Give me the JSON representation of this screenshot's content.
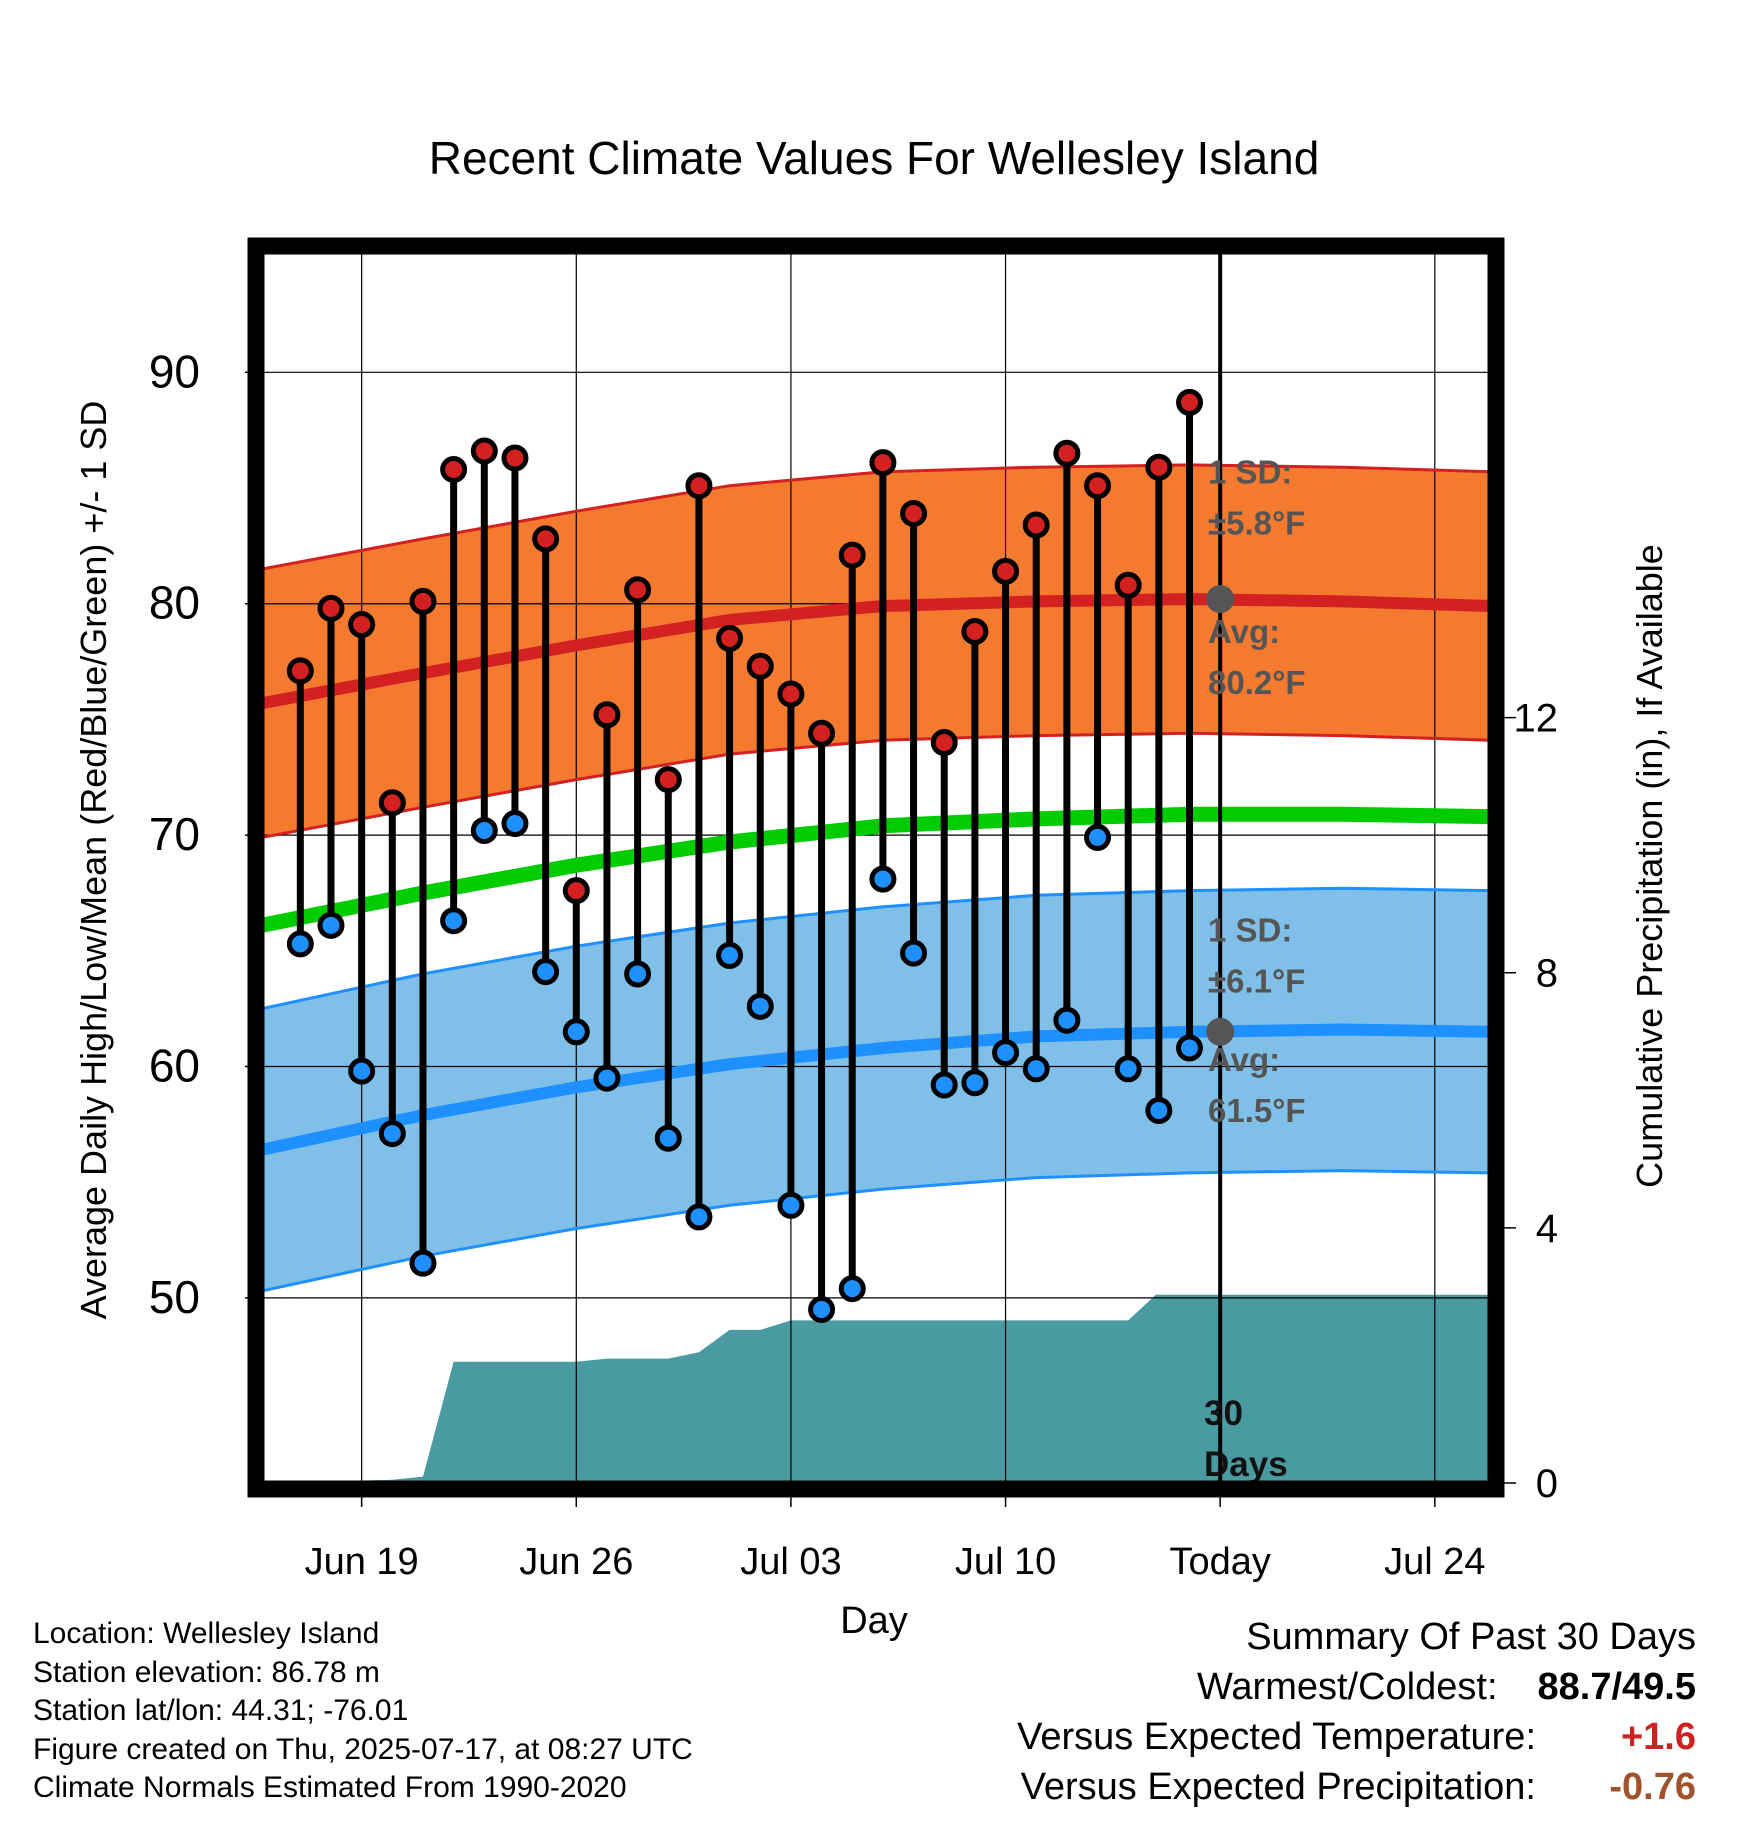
{
  "chart_data": {
    "type": "line",
    "title": "Recent Climate Values For Wellesley Island",
    "xlabel": "Day",
    "ylabel": "Average Daily High/Low/Mean (Red/Blue/Green) +/- 1 SD",
    "y2label": "Cumulative Precipitation (in), If Available",
    "x_ticks": [
      {
        "day": 3,
        "label": "Jun 19"
      },
      {
        "day": 10,
        "label": "Jun 26"
      },
      {
        "day": 17,
        "label": "Jul 03"
      },
      {
        "day": 24,
        "label": "Jul 10"
      },
      {
        "day": 31,
        "label": "Today"
      },
      {
        "day": 38,
        "label": "Jul 24"
      }
    ],
    "xlim": [
      -0.25,
      39.8
    ],
    "ylim": [
      42,
      95.2
    ],
    "y_ticks": [
      50,
      60,
      70,
      80,
      90
    ],
    "y_minor_ticks": [
      45,
      55,
      65,
      75,
      85
    ],
    "y2lim": [
      0,
      19.3
    ],
    "y2_ticks": [
      0,
      4,
      8,
      12
    ],
    "today_day": 31,
    "grid": true,
    "daily": {
      "day": [
        1,
        2,
        3,
        4,
        5,
        6,
        7,
        8,
        9,
        10,
        11,
        12,
        13,
        14,
        15,
        16,
        17,
        18,
        19,
        20,
        21,
        22,
        23,
        24,
        25,
        26,
        27,
        28,
        29,
        30
      ],
      "high": [
        77.1,
        79.8,
        79.1,
        71.4,
        80.1,
        85.8,
        86.6,
        86.3,
        82.8,
        67.6,
        75.2,
        80.6,
        72.4,
        85.1,
        78.5,
        77.3,
        76.1,
        74.4,
        82.1,
        86.1,
        83.9,
        74.0,
        78.8,
        81.4,
        83.4,
        86.5,
        85.1,
        80.8,
        85.9,
        88.7
      ],
      "low": [
        65.3,
        66.1,
        59.8,
        57.1,
        51.5,
        66.3,
        70.2,
        70.5,
        64.1,
        61.5,
        59.5,
        64.0,
        56.9,
        53.5,
        64.8,
        62.6,
        54.0,
        49.5,
        50.4,
        68.1,
        64.9,
        59.2,
        59.3,
        60.6,
        59.9,
        62.0,
        69.9,
        59.9,
        58.1,
        60.8
      ]
    },
    "normals": {
      "day": [
        -0.25,
        5,
        10,
        15,
        20,
        25,
        30,
        35,
        39.8
      ],
      "high_avg": [
        75.7,
        77.0,
        78.2,
        79.3,
        79.9,
        80.1,
        80.2,
        80.1,
        79.9
      ],
      "high_sd": 5.8,
      "low_avg": [
        56.4,
        57.9,
        59.1,
        60.1,
        60.8,
        61.3,
        61.5,
        61.6,
        61.5
      ],
      "low_sd": 6.1,
      "mean_avg": [
        66.1,
        67.5,
        68.7,
        69.7,
        70.4,
        70.7,
        70.9,
        70.9,
        70.8
      ]
    },
    "precip_cumulative": {
      "day": [
        -0.25,
        4,
        5,
        6,
        7,
        10,
        11,
        13,
        14,
        15,
        16,
        17,
        18,
        28,
        28.9,
        29.8,
        39.8
      ],
      "value": [
        0,
        0.05,
        0.1,
        1.9,
        1.9,
        1.9,
        1.95,
        1.95,
        2.05,
        2.4,
        2.4,
        2.55,
        2.55,
        2.55,
        2.95,
        2.95,
        2.95
      ]
    },
    "annotations": {
      "high_sd_label": "1 SD:",
      "high_sd_value": "±5.8°F",
      "high_avg_label": "Avg:",
      "high_avg_value": "80.2°F",
      "low_sd_label": "1 SD:",
      "low_sd_value": "±6.1°F",
      "low_avg_label": "Avg:",
      "low_avg_value": "61.5°F",
      "precip_period_1": "30",
      "precip_period_2": "Days"
    },
    "colors": {
      "high_band": "#f47a30",
      "high_line": "#d32020",
      "low_band": "#80c0e8",
      "low_line": "#1e90ff",
      "mean_line": "#00cc00",
      "precip": "#4a9aa2",
      "annotation": "#555555",
      "today_marker": "#555555"
    }
  },
  "footer": {
    "location": "Location: Wellesley Island",
    "elevation": "Station elevation: 86.78 m",
    "latlon": "Station lat/lon: 44.31; -76.01",
    "created": "Figure created on Thu, 2025-07-17, at 08:27 UTC",
    "normals": "Climate Normals Estimated From 1990-2020"
  },
  "summary": {
    "title": "Summary Of Past 30 Days",
    "warm_cold_label": "Warmest/Coldest:",
    "warm_cold_value": "88.7/49.5",
    "temp_label": "Versus Expected Temperature:",
    "temp_value": "+1.6",
    "precip_label": "Versus Expected Precipitation:",
    "precip_value": "-0.76"
  }
}
